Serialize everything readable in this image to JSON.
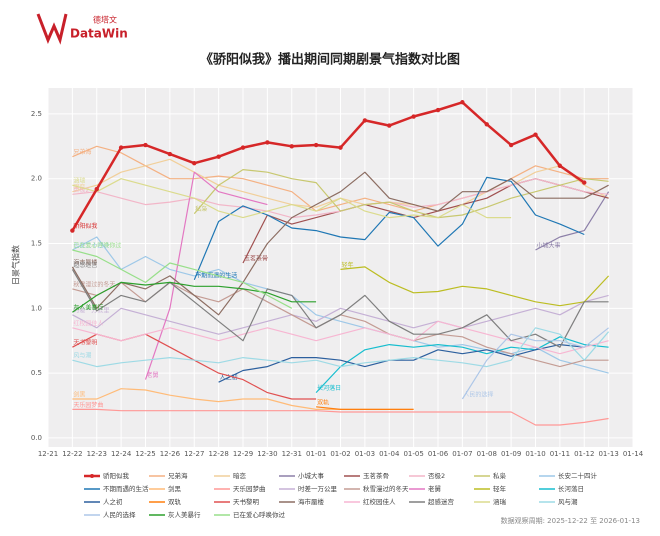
{
  "logo": {
    "cn": "德塔文",
    "en": "DataWin"
  },
  "footer": "数据观察周期: 2025-12-22 至 2026-01-13",
  "chart_data": {
    "type": "line",
    "title": "《骄阳似我》播出期间同期剧景气指数对比图",
    "y_label": "日景气指数",
    "categories": [
      "12-21",
      "12-22",
      "12-23",
      "12-24",
      "12-25",
      "12-26",
      "12-27",
      "12-28",
      "12-29",
      "12-30",
      "12-31",
      "01-01",
      "01-02",
      "01-03",
      "01-04",
      "01-05",
      "01-06",
      "01-07",
      "01-08",
      "01-09",
      "01-10",
      "01-11",
      "01-12",
      "01-13",
      "01-14"
    ],
    "ylim": [
      -0.07,
      2.7
    ],
    "yticks": [
      {
        "value": 0,
        "label": "0.0"
      },
      0.5,
      {
        "value": 1,
        "label": "1.0"
      },
      1.5,
      {
        "value": 2,
        "label": "2.0"
      },
      2.5
    ],
    "grid": true,
    "series": [
      {
        "name": "骄阳似我",
        "color": "#d62728",
        "values": [
          null,
          1.6,
          1.92,
          2.24,
          2.26,
          2.19,
          2.12,
          2.17,
          2.24,
          2.28,
          2.25,
          2.26,
          2.24,
          2.45,
          2.41,
          2.48,
          2.53,
          2.59,
          2.42,
          2.26,
          2.34,
          2.1,
          1.97,
          null,
          null
        ]
      },
      {
        "name": "兄弟海",
        "color": "#f4b183",
        "values": [
          null,
          2.17,
          2.25,
          2.2,
          2.1,
          2.0,
          2.0,
          2.02,
          2.0,
          1.95,
          1.9,
          1.75,
          1.8,
          1.85,
          1.8,
          1.75,
          1.8,
          1.85,
          1.9,
          2.0,
          2.1,
          2.05,
          2.0,
          2.0,
          null
        ]
      },
      {
        "name": "暗恋",
        "color": "#f1cf9a",
        "values": [
          null,
          1.9,
          1.95,
          2.05,
          2.1,
          2.15,
          2.05,
          1.95,
          1.9,
          1.85,
          1.8,
          1.78,
          1.85,
          1.8,
          1.82,
          1.8,
          1.75,
          1.8,
          1.9,
          1.95,
          2.05,
          2.1,
          1.95,
          1.85,
          null
        ]
      },
      {
        "name": "小城大事",
        "color": "#8c7fa8",
        "values": [
          null,
          null,
          null,
          null,
          null,
          null,
          null,
          null,
          null,
          null,
          null,
          null,
          null,
          null,
          null,
          null,
          null,
          null,
          null,
          null,
          1.45,
          1.55,
          1.6,
          1.9,
          null
        ]
      },
      {
        "name": "玉茗茶骨",
        "color": "#a05050",
        "values": [
          null,
          null,
          null,
          null,
          null,
          null,
          null,
          null,
          1.35,
          1.72,
          1.65,
          1.7,
          1.75,
          1.8,
          1.75,
          1.7,
          1.75,
          1.8,
          1.85,
          1.95,
          2.0,
          1.95,
          1.9,
          1.85,
          null
        ]
      },
      {
        "name": "否极2",
        "color": "#f2b6c8",
        "values": [
          null,
          1.88,
          1.9,
          1.85,
          1.8,
          1.82,
          1.85,
          1.8,
          1.78,
          1.75,
          1.7,
          1.72,
          1.75,
          1.8,
          1.82,
          1.78,
          1.8,
          1.85,
          1.9,
          1.95,
          2.0,
          1.95,
          1.9,
          1.88,
          null
        ]
      },
      {
        "name": "私枭",
        "color": "#c8c870",
        "values": [
          null,
          null,
          null,
          null,
          null,
          null,
          1.73,
          1.95,
          2.07,
          2.05,
          2.0,
          1.97,
          1.75,
          1.8,
          1.82,
          1.75,
          1.7,
          1.72,
          1.78,
          1.85,
          1.9,
          1.95,
          2.0,
          1.98,
          null
        ]
      },
      {
        "name": "长安二十四计",
        "color": "#9ec8e8",
        "values": [
          null,
          1.45,
          1.55,
          1.3,
          1.4,
          1.3,
          1.25,
          1.3,
          1.2,
          1.15,
          1.1,
          0.95,
          0.9,
          0.85,
          0.8,
          0.75,
          0.7,
          0.72,
          0.68,
          0.65,
          0.7,
          0.6,
          0.55,
          0.5,
          null
        ]
      },
      {
        "name": "不期而遇的生活",
        "color": "#1f77b4",
        "values": [
          null,
          null,
          null,
          null,
          null,
          null,
          1.22,
          1.67,
          1.79,
          1.72,
          1.62,
          1.6,
          1.55,
          1.53,
          1.74,
          1.7,
          1.48,
          1.65,
          2.01,
          1.98,
          1.72,
          1.65,
          1.57,
          null,
          null
        ]
      },
      {
        "name": "剑黑",
        "color": "#ffbb78",
        "values": [
          null,
          0.3,
          0.3,
          0.38,
          0.37,
          0.33,
          0.3,
          0.28,
          0.3,
          0.3,
          0.25,
          0.22,
          0.22,
          0.22,
          0.22,
          0.22,
          null,
          null,
          null,
          null,
          null,
          null,
          null,
          null,
          null
        ]
      },
      {
        "name": "天乐园梦曲",
        "color": "#ff9896",
        "values": [
          null,
          0.22,
          0.22,
          0.21,
          0.21,
          0.21,
          0.21,
          0.21,
          0.21,
          0.21,
          0.21,
          0.21,
          0.2,
          0.2,
          0.2,
          0.2,
          0.2,
          0.2,
          0.2,
          0.2,
          0.1,
          0.1,
          0.12,
          0.15,
          null
        ]
      },
      {
        "name": "时差一万公里",
        "color": "#c5b0d5",
        "values": [
          null,
          0.95,
          0.85,
          1.0,
          0.95,
          0.9,
          0.85,
          0.8,
          0.85,
          0.9,
          0.95,
          0.9,
          1.0,
          0.95,
          0.9,
          0.85,
          0.9,
          0.85,
          0.9,
          0.95,
          1.0,
          0.95,
          1.05,
          1.1,
          null
        ]
      },
      {
        "name": "秋雪漫过的冬天",
        "color": "#c49c94",
        "values": [
          null,
          1.15,
          1.1,
          1.2,
          1.05,
          1.2,
          1.1,
          1.05,
          1.15,
          1.05,
          0.95,
          0.85,
          0.95,
          0.9,
          0.8,
          0.75,
          0.8,
          0.78,
          0.7,
          0.65,
          0.6,
          0.55,
          0.6,
          0.6,
          null
        ]
      },
      {
        "name": "老舅",
        "color": "#e377c2",
        "values": [
          null,
          null,
          null,
          null,
          0.45,
          1.0,
          2.05,
          1.9,
          1.85,
          1.8,
          null,
          null,
          null,
          null,
          null,
          null,
          null,
          null,
          null,
          null,
          null,
          null,
          null,
          null,
          null
        ]
      },
      {
        "name": "轻年",
        "color": "#bcbd22",
        "values": [
          null,
          null,
          null,
          null,
          null,
          null,
          null,
          null,
          null,
          null,
          null,
          null,
          1.3,
          1.32,
          1.2,
          1.12,
          1.13,
          1.17,
          1.15,
          1.1,
          1.05,
          1.02,
          1.05,
          1.25,
          null
        ]
      },
      {
        "name": "长河落日",
        "color": "#17becf",
        "values": [
          null,
          null,
          null,
          null,
          null,
          null,
          null,
          null,
          null,
          null,
          null,
          0.35,
          0.55,
          0.68,
          0.72,
          0.7,
          0.72,
          0.7,
          0.65,
          0.7,
          0.68,
          0.78,
          0.72,
          0.7,
          null
        ]
      },
      {
        "name": "人之初",
        "color": "#2c5f9e",
        "values": [
          null,
          null,
          null,
          null,
          null,
          null,
          null,
          0.43,
          0.52,
          0.55,
          0.62,
          0.62,
          0.6,
          0.55,
          0.6,
          0.6,
          0.68,
          0.65,
          0.68,
          0.63,
          0.68,
          0.72,
          0.7,
          null,
          null
        ]
      },
      {
        "name": "双轨",
        "color": "#ff7f0e",
        "values": [
          null,
          null,
          null,
          null,
          null,
          null,
          null,
          null,
          null,
          null,
          null,
          0.24,
          0.22,
          0.22,
          0.22,
          0.22,
          null,
          null,
          null,
          null,
          null,
          null,
          null,
          null,
          null
        ]
      },
      {
        "name": "天书黎明",
        "color": "#e05050",
        "values": [
          null,
          0.7,
          0.8,
          0.75,
          0.8,
          0.7,
          0.6,
          0.5,
          0.45,
          0.35,
          0.3,
          0.3,
          null,
          null,
          null,
          null,
          null,
          null,
          null,
          null,
          null,
          null,
          null,
          null,
          null
        ]
      },
      {
        "name": "海市蜃楼",
        "color": "#8c6d62",
        "values": [
          null,
          1.32,
          1.0,
          1.2,
          1.15,
          1.25,
          1.1,
          0.95,
          1.2,
          1.5,
          1.7,
          1.8,
          1.9,
          2.05,
          1.85,
          1.8,
          1.75,
          1.9,
          1.9,
          2.0,
          1.85,
          1.85,
          1.85,
          1.95,
          null
        ]
      },
      {
        "name": "红校园佳人",
        "color": "#f7b6d2",
        "values": [
          null,
          0.85,
          0.8,
          0.75,
          0.8,
          0.85,
          0.8,
          0.75,
          0.8,
          0.85,
          0.8,
          0.75,
          0.8,
          0.85,
          0.8,
          0.75,
          0.9,
          0.85,
          0.8,
          0.75,
          0.7,
          0.65,
          0.7,
          0.75,
          null
        ]
      },
      {
        "name": "超感迷宫",
        "color": "#7f7f7f",
        "values": [
          null,
          1.3,
          0.98,
          1.1,
          1.05,
          1.2,
          1.05,
          0.9,
          0.75,
          1.15,
          1.1,
          0.85,
          0.95,
          1.1,
          0.9,
          0.8,
          0.8,
          0.85,
          0.95,
          0.75,
          0.8,
          0.7,
          1.05,
          1.05,
          null
        ]
      },
      {
        "name": "涵瑞",
        "color": "#dbdb8d",
        "values": [
          null,
          1.95,
          1.9,
          2.0,
          1.95,
          1.9,
          1.85,
          1.75,
          1.7,
          1.75,
          1.8,
          1.75,
          1.85,
          1.75,
          1.7,
          1.72,
          1.7,
          1.8,
          1.7,
          1.7,
          null,
          null,
          null,
          null,
          null
        ]
      },
      {
        "name": "风与潮",
        "color": "#9edae5",
        "values": [
          null,
          0.6,
          0.55,
          0.58,
          0.6,
          0.62,
          0.6,
          0.58,
          0.62,
          0.6,
          0.58,
          0.6,
          0.55,
          0.58,
          0.6,
          0.62,
          0.6,
          0.58,
          0.55,
          0.6,
          0.85,
          0.8,
          0.6,
          0.82,
          null
        ]
      },
      {
        "name": "人民的选择",
        "color": "#aec7e8",
        "values": [
          null,
          null,
          null,
          null,
          null,
          null,
          null,
          null,
          null,
          null,
          null,
          null,
          null,
          null,
          null,
          null,
          null,
          0.3,
          0.6,
          0.8,
          0.75,
          0.75,
          0.7,
          0.85,
          null
        ]
      },
      {
        "name": "灰人美暴行",
        "color": "#2ca02c",
        "values": [
          null,
          0.97,
          1.1,
          1.2,
          1.18,
          1.2,
          1.17,
          1.17,
          1.15,
          1.12,
          1.05,
          1.05,
          null,
          null,
          null,
          null,
          null,
          null,
          null,
          null,
          null,
          null,
          null,
          null,
          null
        ]
      },
      {
        "name": "已在爱心呼唤你过",
        "color": "#98df8a",
        "values": [
          null,
          1.45,
          1.4,
          1.3,
          1.2,
          1.35,
          1.3,
          1.25,
          1.2,
          1.1,
          1.0,
          null,
          null,
          null,
          null,
          null,
          null,
          null,
          null,
          null,
          null,
          null,
          null,
          null,
          null
        ]
      }
    ]
  }
}
